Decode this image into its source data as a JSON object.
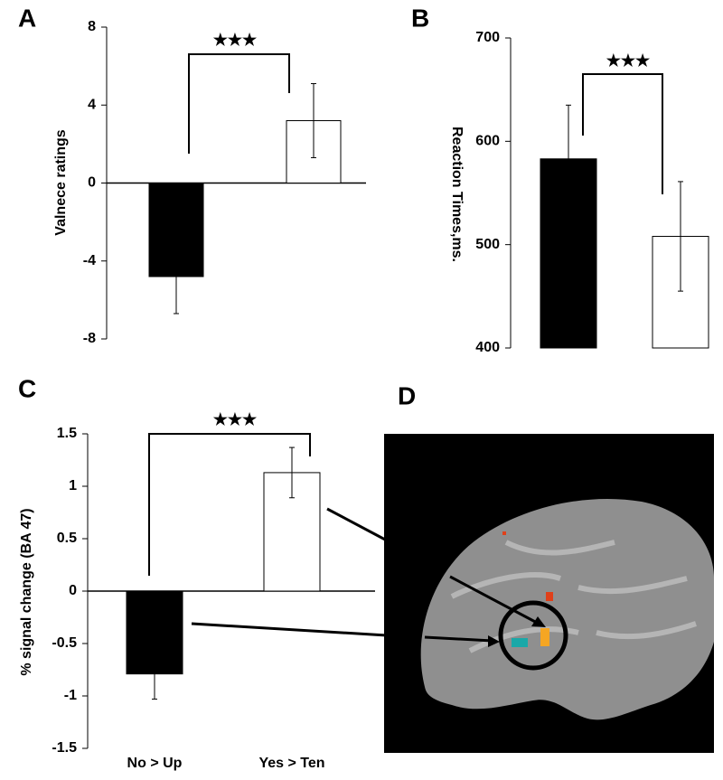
{
  "chart_data": [
    {
      "type": "bar",
      "panel": "A",
      "ylabel": "Valnece ratings",
      "annotation": "★★★",
      "categories": [
        null,
        null
      ],
      "values": [
        -4.8,
        3.2
      ],
      "errors": [
        1.9,
        1.9
      ],
      "colors": [
        "#000000",
        "#ffffff"
      ],
      "ylim": [
        -8,
        8
      ],
      "yticks": [
        -8,
        -4,
        0,
        4,
        8
      ]
    },
    {
      "type": "bar",
      "panel": "B",
      "ylabel": "Reaction Times,ms.",
      "annotation": "★★★",
      "categories": [
        null,
        null
      ],
      "values": [
        583,
        508
      ],
      "errors": [
        52,
        53
      ],
      "colors": [
        "#000000",
        "#ffffff"
      ],
      "ylim": [
        400,
        700
      ],
      "yticks": [
        400,
        500,
        600,
        700
      ]
    },
    {
      "type": "bar",
      "panel": "C",
      "ylabel": "% signal change (BA 47)",
      "annotation": "★★★",
      "categories": [
        "No > Up",
        "Yes > Ten"
      ],
      "values": [
        -0.79,
        1.13
      ],
      "errors": [
        0.24,
        0.24
      ],
      "colors": [
        "#000000",
        "#ffffff"
      ],
      "ylim": [
        -1.5,
        1.5
      ],
      "yticks": [
        -1.5,
        -1,
        -0.5,
        0,
        0.5,
        1,
        1.5
      ]
    }
  ],
  "image": {
    "panel": "D"
  }
}
